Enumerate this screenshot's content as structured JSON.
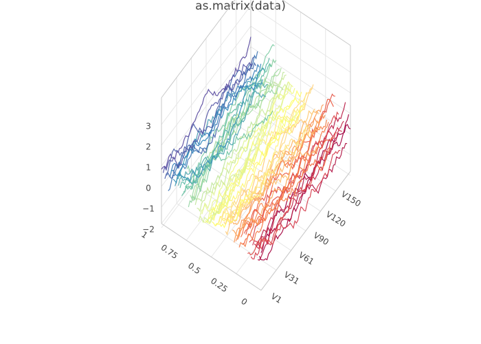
{
  "chart_data": {
    "type": "line",
    "subtype": "3d-surface-lines",
    "title": "as.matrix(data)",
    "x_axis": {
      "ticks": [
        "V1",
        "V31",
        "V61",
        "V90",
        "V120",
        "V150"
      ],
      "range": [
        "V1",
        "V180"
      ]
    },
    "y_axis": {
      "ticks": [
        "0",
        "0.25",
        "0.5",
        "0.75",
        "1"
      ],
      "range": [
        0,
        1
      ]
    },
    "z_axis": {
      "ticks": [
        "−2",
        "−1",
        "0",
        "1",
        "2",
        "3"
      ],
      "range": [
        -2.6,
        3.4
      ]
    },
    "grid": true,
    "legend": "none",
    "series_count": 60,
    "points_per_series": 60,
    "colorscale": "Spectral",
    "colors": [
      "#9e0142",
      "#d53e4f",
      "#f46d43",
      "#fdae61",
      "#fee08b",
      "#ffff6b",
      "#e6f598",
      "#abdda4",
      "#66c2a5",
      "#3288bd",
      "#5e4fa2"
    ]
  }
}
